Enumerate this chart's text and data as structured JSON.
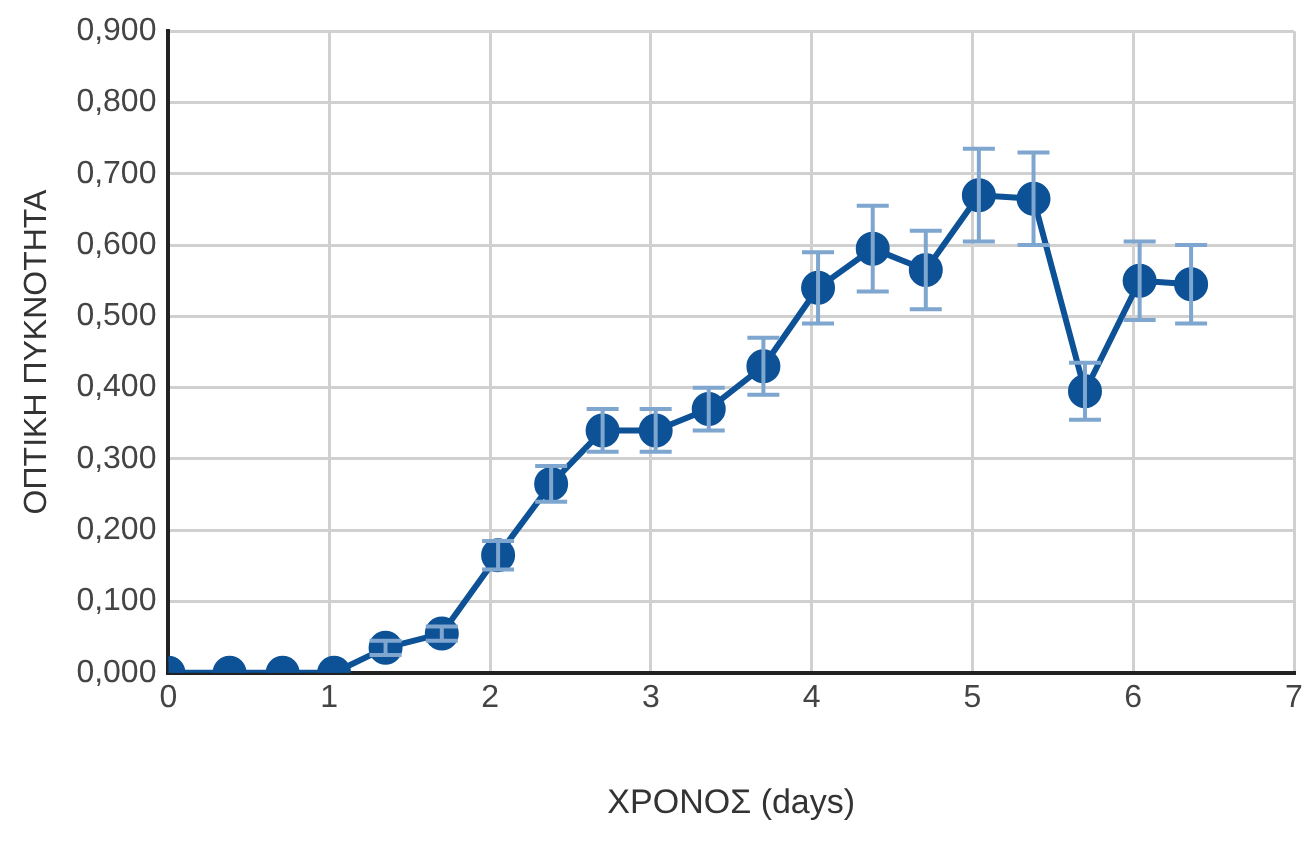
{
  "chart_data": {
    "type": "line",
    "xlabel": "ΧΡΟΝΟΣ (days)",
    "ylabel": "ΟΠΤΙΚΗ ΠΥΚΝΟΤΗΤΑ",
    "x": [
      0,
      0.38,
      0.71,
      1.03,
      1.35,
      1.7,
      2.05,
      2.38,
      2.7,
      3.03,
      3.36,
      3.7,
      4.04,
      4.38,
      4.71,
      5.04,
      5.38,
      5.7,
      6.04,
      6.36
    ],
    "series": [
      {
        "color": "#0d5196",
        "values": [
          0,
          0,
          0,
          0,
          0.035,
          0.055,
          0.165,
          0.265,
          0.34,
          0.34,
          0.37,
          0.43,
          0.54,
          0.595,
          0.565,
          0.67,
          0.665,
          0.395,
          0.55,
          0.545
        ],
        "errors": [
          null,
          null,
          null,
          null,
          0.01,
          0.01,
          0.02,
          0.025,
          0.03,
          0.03,
          0.03,
          0.04,
          0.05,
          0.06,
          0.055,
          0.065,
          0.065,
          0.04,
          0.055,
          0.055
        ]
      }
    ],
    "xlim": [
      0,
      7
    ],
    "xticks": [
      0,
      1,
      2,
      3,
      4,
      5,
      6,
      7
    ],
    "ylim": [
      0,
      0.9
    ],
    "yticks": [
      {
        "value": 0,
        "label": "0,000"
      },
      {
        "value": 0.1,
        "label": "0,100"
      },
      {
        "value": 0.2,
        "label": "0,200"
      },
      {
        "value": 0.3,
        "label": "0,300"
      },
      {
        "value": 0.4,
        "label": "0,400"
      },
      {
        "value": 0.5,
        "label": "0,500"
      },
      {
        "value": 0.6,
        "label": "0,600"
      },
      {
        "value": 0.7,
        "label": "0,700"
      },
      {
        "value": 0.8,
        "label": "0,800"
      },
      {
        "value": 0.9,
        "label": "0,900"
      }
    ],
    "grid": true,
    "legend": false,
    "marker": "circle",
    "line_style": "solid"
  }
}
